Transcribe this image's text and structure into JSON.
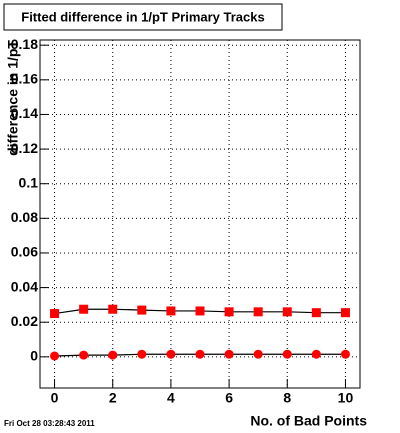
{
  "chart_data": {
    "type": "line",
    "title": "Fitted difference in 1/pT Primary Tracks",
    "x_label": "No. of Bad Points",
    "y_label": "difference in 1/pT",
    "footer": "Fri Oct 28 03:28:43 2011",
    "x": [
      0,
      1,
      2,
      3,
      4,
      5,
      6,
      7,
      8,
      9,
      10
    ],
    "series": [
      {
        "color": "#ff0000",
        "marker": "square",
        "values": [
          0.025,
          0.0275,
          0.0275,
          0.027,
          0.0265,
          0.0265,
          0.026,
          0.026,
          0.026,
          0.0255,
          0.0255
        ]
      },
      {
        "color": "#ff0000",
        "marker": "circle",
        "values": [
          0.0005,
          0.001,
          0.001,
          0.0015,
          0.0015,
          0.0015,
          0.0015,
          0.0015,
          0.0015,
          0.0015,
          0.0015
        ]
      }
    ],
    "xlim": [
      -0.5,
      10.5
    ],
    "ylim": [
      -0.018,
      0.183
    ],
    "xticks": [
      0,
      2,
      4,
      6,
      8,
      10
    ],
    "yticks": [
      0,
      0.02,
      0.04,
      0.06,
      0.08,
      0.1,
      0.12,
      0.14,
      0.16,
      0.18
    ],
    "grid": true
  }
}
